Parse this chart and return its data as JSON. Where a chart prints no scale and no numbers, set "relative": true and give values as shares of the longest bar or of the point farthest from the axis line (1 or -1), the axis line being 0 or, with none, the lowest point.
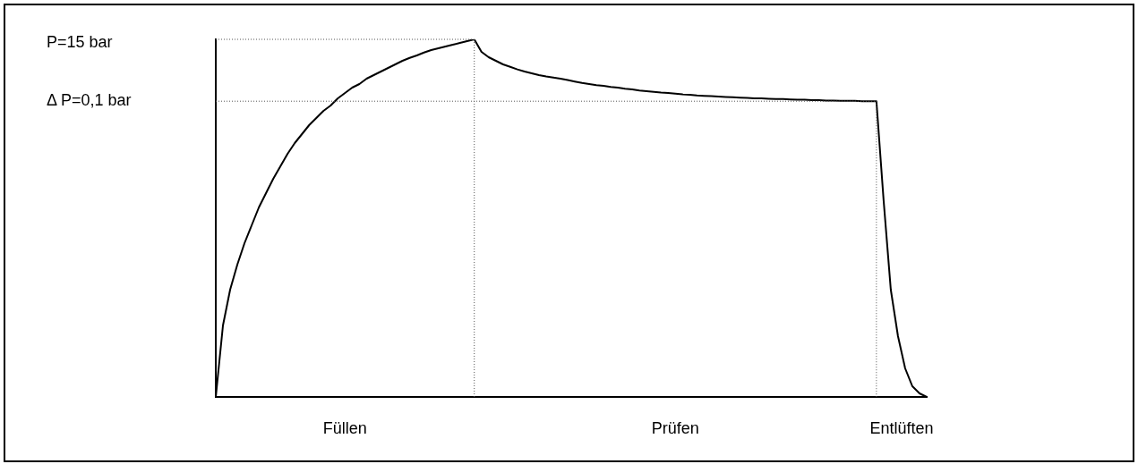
{
  "chart_data": {
    "type": "line",
    "relative": true,
    "categories": [
      null,
      null,
      null,
      null,
      null,
      null,
      null,
      null,
      null,
      null,
      null,
      null,
      null,
      null,
      null,
      null,
      null,
      null,
      null,
      null,
      null,
      null,
      null,
      null,
      null,
      null,
      null,
      null,
      null,
      null,
      null,
      null,
      null,
      null,
      null,
      null,
      null,
      null,
      null,
      null,
      null,
      null,
      null,
      null,
      null,
      null,
      null,
      null,
      null,
      null,
      null,
      null,
      null,
      null,
      null,
      null,
      null,
      null,
      null,
      null,
      null,
      null,
      null,
      null,
      null,
      null,
      null,
      null,
      null,
      null,
      null,
      null,
      null,
      null,
      null,
      null,
      null,
      null,
      null,
      null,
      null,
      null,
      null,
      null,
      null,
      null,
      null,
      null,
      null,
      null,
      null,
      null,
      null,
      null,
      null,
      null,
      null,
      null,
      null,
      null
    ],
    "series": [
      {
        "color": "#000000",
        "values": [
          0,
          0.2,
          0.3,
          0.37,
          0.43,
          0.48,
          0.53,
          0.57,
          0.61,
          0.645,
          0.68,
          0.71,
          0.735,
          0.76,
          0.78,
          0.8,
          0.815,
          0.835,
          0.85,
          0.865,
          0.875,
          0.89,
          0.9,
          0.91,
          0.92,
          0.93,
          0.94,
          0.948,
          0.955,
          0.963,
          0.97,
          0.975,
          0.98,
          0.985,
          0.99,
          0.995,
          1,
          0.965,
          0.95,
          0.94,
          0.93,
          0.923,
          0.916,
          0.91,
          0.905,
          0.9,
          0.896,
          0.893,
          0.89,
          0.886,
          0.882,
          0.878,
          0.875,
          0.872,
          0.87,
          0.867,
          0.865,
          0.862,
          0.86,
          0.857,
          0.855,
          0.853,
          0.851,
          0.85,
          0.848,
          0.846,
          0.845,
          0.843,
          0.842,
          0.841,
          0.84,
          0.839,
          0.838,
          0.837,
          0.836,
          0.835,
          0.835,
          0.834,
          0.833,
          0.833,
          0.832,
          0.831,
          0.831,
          0.83,
          0.83,
          0.829,
          0.829,
          0.828,
          0.828,
          0.828,
          0.827,
          0.827,
          0.827,
          0.55,
          0.3,
          0.17,
          0.08,
          0.03,
          0.01,
          0
        ]
      }
    ],
    "annotations": [
      "P=15 bar",
      "Δ P=0,1 bar",
      "Füllen",
      "Prüfen",
      "Entlüften"
    ],
    "marker": "none",
    "line_style": "solid",
    "grid": false,
    "legend": false
  }
}
